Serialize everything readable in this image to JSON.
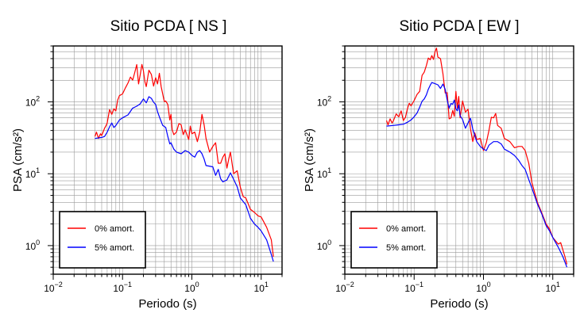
{
  "chart_data": [
    {
      "type": "line",
      "title": "Sitio PCDA [ NS ]",
      "xlabel": "Periodo (s)",
      "ylabel": "PSA (cm/s²)",
      "xscale": "log",
      "yscale": "log",
      "xlim": [
        0.01,
        20
      ],
      "ylim": [
        0.4,
        600
      ],
      "xticks": [
        {
          "base": "10",
          "exp": "−2"
        },
        {
          "base": "10",
          "exp": "−1"
        },
        {
          "base": "10",
          "exp": "0"
        },
        {
          "base": "10",
          "exp": "1"
        }
      ],
      "yticks": [
        {
          "base": "10",
          "exp": "0"
        },
        {
          "base": "10",
          "exp": "1"
        },
        {
          "base": "10",
          "exp": "2"
        }
      ],
      "grid": true,
      "legend_position": "bottom-left",
      "series": [
        {
          "name": "0% amort.",
          "color": "#ff0000",
          "points": [
            [
              0.04,
              33
            ],
            [
              0.042,
              38
            ],
            [
              0.045,
              31
            ],
            [
              0.048,
              36
            ],
            [
              0.05,
              34
            ],
            [
              0.055,
              43
            ],
            [
              0.058,
              47
            ],
            [
              0.06,
              51
            ],
            [
              0.065,
              78
            ],
            [
              0.07,
              67
            ],
            [
              0.075,
              80
            ],
            [
              0.08,
              75
            ],
            [
              0.085,
              106
            ],
            [
              0.09,
              122
            ],
            [
              0.1,
              129
            ],
            [
              0.11,
              157
            ],
            [
              0.12,
              184
            ],
            [
              0.13,
              222
            ],
            [
              0.14,
              201
            ],
            [
              0.15,
              256
            ],
            [
              0.16,
              330
            ],
            [
              0.17,
              178
            ],
            [
              0.18,
              240
            ],
            [
              0.19,
              332
            ],
            [
              0.2,
              270
            ],
            [
              0.21,
              190
            ],
            [
              0.22,
              163
            ],
            [
              0.24,
              276
            ],
            [
              0.26,
              241
            ],
            [
              0.28,
              166
            ],
            [
              0.3,
              217
            ],
            [
              0.32,
              178
            ],
            [
              0.34,
              250
            ],
            [
              0.36,
              164
            ],
            [
              0.4,
              101
            ],
            [
              0.42,
              103
            ],
            [
              0.45,
              92
            ],
            [
              0.48,
              56
            ],
            [
              0.5,
              67
            ],
            [
              0.52,
              41
            ],
            [
              0.55,
              35
            ],
            [
              0.6,
              38
            ],
            [
              0.65,
              50
            ],
            [
              0.7,
              48
            ],
            [
              0.75,
              35
            ],
            [
              0.8,
              41
            ],
            [
              0.85,
              35
            ],
            [
              0.9,
              30
            ],
            [
              0.95,
              46
            ],
            [
              1.0,
              36
            ],
            [
              1.1,
              38
            ],
            [
              1.2,
              28
            ],
            [
              1.3,
              38
            ],
            [
              1.4,
              67
            ],
            [
              1.5,
              48
            ],
            [
              1.6,
              31
            ],
            [
              1.8,
              20
            ],
            [
              2.0,
              24
            ],
            [
              2.2,
              27
            ],
            [
              2.4,
              14
            ],
            [
              2.6,
              14
            ],
            [
              2.8,
              17
            ],
            [
              3.0,
              19
            ],
            [
              3.2,
              12
            ],
            [
              3.4,
              16
            ],
            [
              3.6,
              20
            ],
            [
              4.0,
              10
            ],
            [
              4.5,
              11
            ],
            [
              5.0,
              6.5
            ],
            [
              5.5,
              4.8
            ],
            [
              6.0,
              4.6
            ],
            [
              7.0,
              3.2
            ],
            [
              8.0,
              2.9
            ],
            [
              9.0,
              2.6
            ],
            [
              10.0,
              2.5
            ],
            [
              12.0,
              1.8
            ],
            [
              14.0,
              1.2
            ],
            [
              15.0,
              0.7
            ]
          ]
        },
        {
          "name": "5% amort.",
          "color": "#0000ff",
          "points": [
            [
              0.04,
              31
            ],
            [
              0.05,
              32
            ],
            [
              0.055,
              33
            ],
            [
              0.06,
              38
            ],
            [
              0.065,
              45
            ],
            [
              0.07,
              51
            ],
            [
              0.075,
              44
            ],
            [
              0.08,
              47
            ],
            [
              0.09,
              56
            ],
            [
              0.1,
              60
            ],
            [
              0.12,
              66
            ],
            [
              0.14,
              82
            ],
            [
              0.16,
              87
            ],
            [
              0.18,
              94
            ],
            [
              0.2,
              110
            ],
            [
              0.22,
              97
            ],
            [
              0.24,
              118
            ],
            [
              0.26,
              112
            ],
            [
              0.28,
              99
            ],
            [
              0.3,
              92
            ],
            [
              0.32,
              73
            ],
            [
              0.34,
              62
            ],
            [
              0.38,
              47
            ],
            [
              0.42,
              44
            ],
            [
              0.45,
              33
            ],
            [
              0.48,
              26
            ],
            [
              0.5,
              27
            ],
            [
              0.55,
              22
            ],
            [
              0.6,
              20
            ],
            [
              0.7,
              19
            ],
            [
              0.8,
              21
            ],
            [
              0.9,
              20
            ],
            [
              1.0,
              18
            ],
            [
              1.1,
              17
            ],
            [
              1.2,
              20
            ],
            [
              1.3,
              21
            ],
            [
              1.4,
              19
            ],
            [
              1.5,
              16
            ],
            [
              1.6,
              13
            ],
            [
              2.0,
              12.5
            ],
            [
              2.2,
              9.5
            ],
            [
              2.4,
              11.5
            ],
            [
              2.6,
              8.5
            ],
            [
              2.8,
              7.7
            ],
            [
              3.2,
              8.2
            ],
            [
              3.6,
              10.3
            ],
            [
              4.0,
              8.4
            ],
            [
              4.5,
              6.6
            ],
            [
              5.0,
              4.6
            ],
            [
              6.0,
              3.7
            ],
            [
              7.0,
              2.4
            ],
            [
              8.0,
              2.0
            ],
            [
              9.0,
              1.8
            ],
            [
              10.0,
              1.6
            ],
            [
              12.0,
              1.2
            ],
            [
              14.0,
              0.75
            ],
            [
              15.0,
              0.6
            ]
          ]
        }
      ]
    },
    {
      "type": "line",
      "title": "Sitio PCDA [ EW ]",
      "xlabel": "Periodo (s)",
      "ylabel": "PSA (cm/s²)",
      "xscale": "log",
      "yscale": "log",
      "xlim": [
        0.01,
        20
      ],
      "ylim": [
        0.4,
        600
      ],
      "xticks": [
        {
          "base": "10",
          "exp": "−2"
        },
        {
          "base": "10",
          "exp": "−1"
        },
        {
          "base": "10",
          "exp": "0"
        },
        {
          "base": "10",
          "exp": "1"
        }
      ],
      "yticks": [
        {
          "base": "10",
          "exp": "0"
        },
        {
          "base": "10",
          "exp": "1"
        },
        {
          "base": "10",
          "exp": "2"
        }
      ],
      "grid": true,
      "legend_position": "bottom-left",
      "series": [
        {
          "name": "0% amort.",
          "color": "#ff0000",
          "points": [
            [
              0.04,
              55
            ],
            [
              0.042,
              48
            ],
            [
              0.045,
              58
            ],
            [
              0.048,
              51
            ],
            [
              0.05,
              54
            ],
            [
              0.055,
              68
            ],
            [
              0.06,
              62
            ],
            [
              0.065,
              75
            ],
            [
              0.07,
              55
            ],
            [
              0.075,
              61
            ],
            [
              0.08,
              80
            ],
            [
              0.085,
              96
            ],
            [
              0.09,
              88
            ],
            [
              0.1,
              104
            ],
            [
              0.11,
              127
            ],
            [
              0.12,
              140
            ],
            [
              0.13,
              233
            ],
            [
              0.14,
              260
            ],
            [
              0.15,
              320
            ],
            [
              0.16,
              408
            ],
            [
              0.17,
              385
            ],
            [
              0.18,
              441
            ],
            [
              0.19,
              390
            ],
            [
              0.2,
              500
            ],
            [
              0.21,
              560
            ],
            [
              0.22,
              420
            ],
            [
              0.24,
              400
            ],
            [
              0.26,
              246
            ],
            [
              0.28,
              133
            ],
            [
              0.3,
              134
            ],
            [
              0.32,
              58
            ],
            [
              0.34,
              60
            ],
            [
              0.36,
              76
            ],
            [
              0.38,
              63
            ],
            [
              0.4,
              140
            ],
            [
              0.42,
              82
            ],
            [
              0.44,
              119
            ],
            [
              0.46,
              60
            ],
            [
              0.5,
              103
            ],
            [
              0.55,
              72
            ],
            [
              0.6,
              79
            ],
            [
              0.65,
              42
            ],
            [
              0.7,
              28
            ],
            [
              0.75,
              37
            ],
            [
              0.8,
              30
            ],
            [
              0.9,
              31
            ],
            [
              1.0,
              21
            ],
            [
              1.1,
              27
            ],
            [
              1.2,
              40
            ],
            [
              1.3,
              61
            ],
            [
              1.4,
              60
            ],
            [
              1.5,
              69
            ],
            [
              1.6,
              47
            ],
            [
              1.8,
              43
            ],
            [
              2.0,
              31
            ],
            [
              2.4,
              28
            ],
            [
              2.8,
              23
            ],
            [
              3.2,
              24
            ],
            [
              3.6,
              24
            ],
            [
              4.0,
              21
            ],
            [
              4.5,
              14
            ],
            [
              5.0,
              7.5
            ],
            [
              6.0,
              4.0
            ],
            [
              7.0,
              2.8
            ],
            [
              8.0,
              2.0
            ],
            [
              9.0,
              1.7
            ],
            [
              10.0,
              1.3
            ],
            [
              12.0,
              1.05
            ],
            [
              13.0,
              1.1
            ],
            [
              15.0,
              0.7
            ],
            [
              16.0,
              0.55
            ]
          ]
        },
        {
          "name": "5% amort.",
          "color": "#0000ff",
          "points": [
            [
              0.04,
              46
            ],
            [
              0.05,
              47
            ],
            [
              0.06,
              48
            ],
            [
              0.07,
              49
            ],
            [
              0.08,
              52
            ],
            [
              0.09,
              56
            ],
            [
              0.1,
              62
            ],
            [
              0.11,
              70
            ],
            [
              0.12,
              84
            ],
            [
              0.13,
              102
            ],
            [
              0.14,
              110
            ],
            [
              0.15,
              125
            ],
            [
              0.16,
              150
            ],
            [
              0.17,
              170
            ],
            [
              0.18,
              186
            ],
            [
              0.2,
              179
            ],
            [
              0.22,
              173
            ],
            [
              0.24,
              154
            ],
            [
              0.26,
              177
            ],
            [
              0.28,
              150
            ],
            [
              0.3,
              105
            ],
            [
              0.32,
              82
            ],
            [
              0.34,
              95
            ],
            [
              0.36,
              93
            ],
            [
              0.38,
              106
            ],
            [
              0.4,
              80
            ],
            [
              0.42,
              75
            ],
            [
              0.44,
              91
            ],
            [
              0.46,
              64
            ],
            [
              0.5,
              57
            ],
            [
              0.55,
              43
            ],
            [
              0.6,
              51
            ],
            [
              0.65,
              59
            ],
            [
              0.7,
              42
            ],
            [
              0.8,
              28
            ],
            [
              0.9,
              24
            ],
            [
              1.0,
              22
            ],
            [
              1.1,
              21
            ],
            [
              1.2,
              25
            ],
            [
              1.4,
              28
            ],
            [
              1.6,
              28
            ],
            [
              1.8,
              26
            ],
            [
              2.0,
              22
            ],
            [
              2.4,
              20
            ],
            [
              2.8,
              18
            ],
            [
              3.2,
              15.5
            ],
            [
              3.6,
              13
            ],
            [
              4.0,
              11.5
            ],
            [
              4.5,
              8.3
            ],
            [
              5.0,
              6.3
            ],
            [
              6.0,
              3.8
            ],
            [
              7.0,
              2.7
            ],
            [
              8.0,
              1.9
            ],
            [
              9.0,
              1.6
            ],
            [
              10.0,
              1.3
            ],
            [
              12.0,
              0.95
            ],
            [
              14.0,
              0.7
            ],
            [
              16.0,
              0.5
            ]
          ]
        }
      ]
    }
  ]
}
